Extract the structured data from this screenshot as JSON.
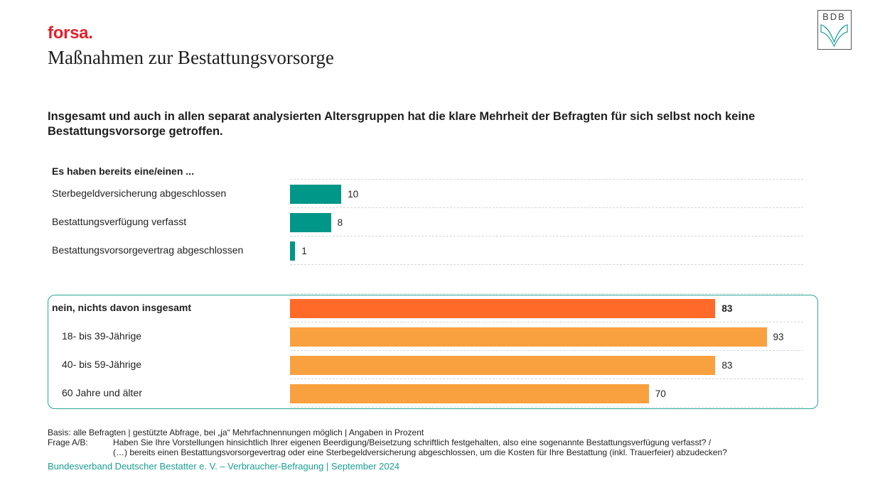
{
  "header": {
    "brand": "forsa.",
    "title": "Maßnahmen zur Bestattungsvorsorge",
    "logo_text": "BDB"
  },
  "headline": "Insgesamt und auch in allen separat analysierten Altersgruppen hat die klare Mehrheit der Befragten für sich selbst noch keine Bestattungsvorsorge getroffen.",
  "colors": {
    "teal": "#009688",
    "orange_dark": "#ff6a28",
    "orange_light": "#f9a03f",
    "brand_red": "#e3202a",
    "box_border": "#2aa69a"
  },
  "chart_data": {
    "type": "bar",
    "orientation": "horizontal",
    "title": "Maßnahmen zur Bestattungsvorsorge",
    "unit": "Prozent",
    "xlim": [
      0,
      100
    ],
    "grid": true,
    "groups": [
      {
        "label": "Es haben bereits eine/einen ...",
        "categories": [
          "Sterbegeldversicherung abgeschlossen",
          "Bestattungsverfügung verfasst",
          "Bestattungsvorsorgevertrag abgeschlossen"
        ],
        "values": [
          10,
          8,
          1
        ],
        "color": "#009688"
      },
      {
        "label": "",
        "highlighted": true,
        "categories": [
          "nein, nichts davon insgesamt",
          "18- bis 39-Jährige",
          "40- bis 59-Jährige",
          "60 Jahre und älter"
        ],
        "values": [
          83,
          93,
          83,
          70
        ],
        "colors": [
          "#ff6a28",
          "#f9a03f",
          "#f9a03f",
          "#f9a03f"
        ],
        "bold": [
          true,
          false,
          false,
          false
        ]
      }
    ]
  },
  "footer": {
    "basis": "Basis: alle Befragten | gestützte Abfrage, bei „ja“ Mehrfachnennungen möglich | Angaben in Prozent",
    "question_label": "Frage A/B:",
    "question_line1": "Haben Sie Ihre Vorstellungen hinsichtlich Ihrer eigenen Beerdigung/Beisetzung schriftlich festgehalten, also eine sogenannte Bestattungsverfügung verfasst? /",
    "question_line2": "(…) bereits einen Bestattungsvorsorgevertrag oder eine Sterbegeldversicherung abgeschlossen, um die Kosten für Ihre Bestattung (inkl. Trauerfeier) abzudecken?",
    "source": "Bundesverband Deutscher Bestatter e. V. – Verbraucher-Befragung | September 2024"
  }
}
